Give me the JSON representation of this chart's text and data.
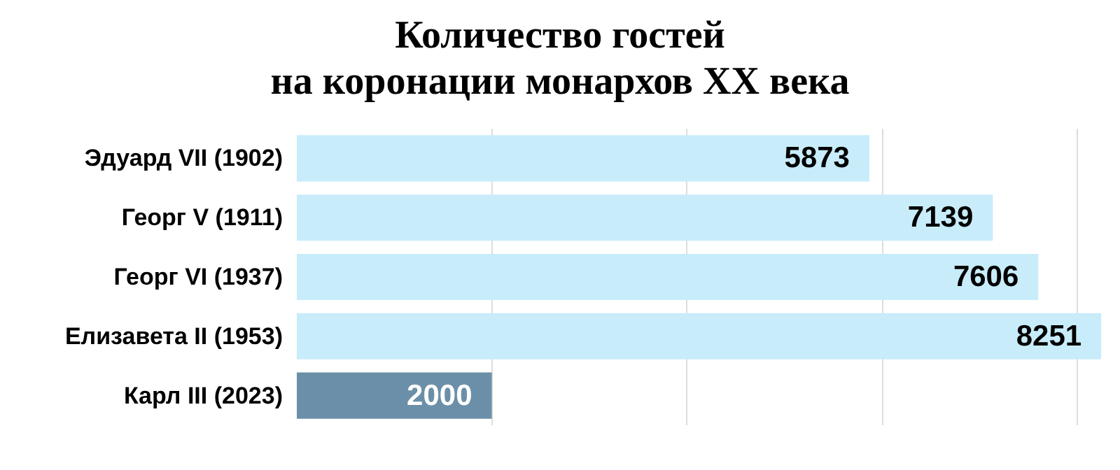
{
  "chart_data": {
    "type": "bar",
    "orientation": "horizontal",
    "title": "Количество гостей\nна коронации монархов XX века",
    "categories": [
      "Эдуард VII (1902)",
      "Георг V (1911)",
      "Георг VI (1937)",
      "Елизавета II (1953)",
      "Карл III (2023)"
    ],
    "values": [
      5873,
      7139,
      7606,
      8251,
      2000
    ],
    "colors": [
      "#c8ecfa",
      "#c8ecfa",
      "#c8ecfa",
      "#c8ecfa",
      "#6b8fa8"
    ],
    "xlim": [
      0,
      8300
    ],
    "xticks": [
      {
        "value": 2000,
        "label": null
      },
      {
        "value": 4000,
        "label": null
      },
      {
        "value": 6000,
        "label": null
      },
      {
        "value": 8000,
        "label": null
      }
    ],
    "grid": "x",
    "tick_labels": "y",
    "data_labels": true
  }
}
